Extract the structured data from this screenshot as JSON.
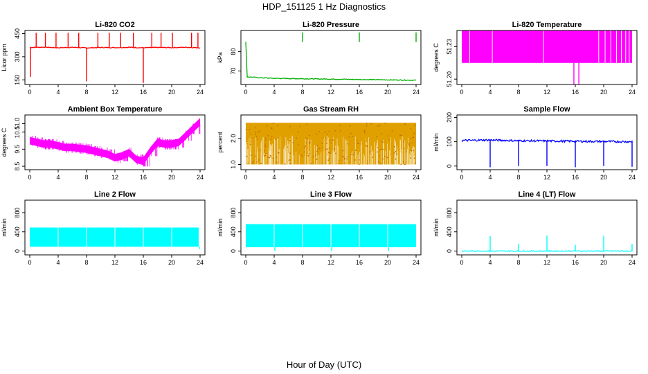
{
  "figure": {
    "title": "HDP_151125  1 Hz Diagnostics",
    "xlabel": "Hour of Day (UTC)"
  },
  "chart_data": [
    {
      "type": "line",
      "title": "Li-820 CO2",
      "ylabel": "Licor ppm",
      "color": "#ff0000",
      "xlim": [
        0,
        24
      ],
      "ylim": [
        120,
        470
      ],
      "xticks": [
        0,
        4,
        8,
        12,
        16,
        20,
        24
      ],
      "yticks": [
        150,
        300,
        450
      ],
      "ytick_labels": [
        "150",
        "300",
        "450"
      ],
      "series": [
        {
          "kind": "baseline",
          "segments": [
            [
              0.0,
              360
            ],
            [
              2,
              362
            ],
            [
              4,
              358
            ],
            [
              6,
              361
            ],
            [
              8,
              357
            ],
            [
              10,
              360
            ],
            [
              12,
              359
            ],
            [
              14,
              361
            ],
            [
              16,
              358
            ],
            [
              18,
              360
            ],
            [
              20,
              359
            ],
            [
              22,
              361
            ],
            [
              24,
              358
            ]
          ]
        },
        {
          "kind": "spikes_up",
          "x": [
            0.9,
            2.2,
            3.7,
            5.4,
            6.9,
            9.6,
            11.2,
            12.8,
            14.6,
            17.2,
            18.5,
            20.1,
            22.8,
            23.7
          ],
          "peak": 455
        },
        {
          "kind": "spikes_down",
          "x": [
            0.1,
            8.0,
            16.0
          ],
          "low": [
            170,
            140,
            130
          ]
        }
      ]
    },
    {
      "type": "line",
      "title": "Li-820 Pressure",
      "ylabel": "kPa",
      "color": "#00b000",
      "xlim": [
        0,
        24
      ],
      "ylim": [
        63,
        91
      ],
      "xticks": [
        0,
        4,
        8,
        12,
        16,
        20,
        24
      ],
      "yticks": [
        70,
        80
      ],
      "ytick_labels": [
        "70",
        "80"
      ],
      "series": [
        {
          "kind": "baseline",
          "segments": [
            [
              0.0,
              85
            ],
            [
              0.2,
              67
            ],
            [
              2,
              66.5
            ],
            [
              4,
              66.2
            ],
            [
              8,
              66.0
            ],
            [
              12,
              65.8
            ],
            [
              16,
              65.6
            ],
            [
              20,
              65.4
            ],
            [
              24,
              65.2
            ]
          ]
        },
        {
          "kind": "spikes_up",
          "x": [
            8.0,
            16.0,
            24.0
          ],
          "peak": 90
        }
      ]
    },
    {
      "type": "bar",
      "title": "Li-820 Temperature",
      "ylabel": "degrees C",
      "color": "#ff00ff",
      "xlim": [
        0,
        24
      ],
      "ylim": [
        51.195,
        51.245
      ],
      "xticks": [
        0,
        4,
        8,
        12,
        16,
        20,
        24
      ],
      "yticks": [
        51.2,
        51.23
      ],
      "ytick_labels": [
        "51.20",
        "51.23"
      ],
      "series": [
        {
          "kind": "band",
          "x": [
            0.0,
            24.0
          ],
          "y": [
            51.215,
            51.245
          ],
          "gaps": [
            1.1,
            4.3,
            11.5,
            19.3,
            20.2,
            21.0,
            21.8,
            22.5,
            23.1,
            23.6
          ]
        },
        {
          "kind": "spikes_down",
          "x": [
            15.8,
            16.5
          ],
          "low": [
            51.195,
            51.195
          ]
        }
      ]
    },
    {
      "type": "line",
      "title": "Ambient Box Temperature",
      "ylabel": "degrees C",
      "color": "#ff00ff",
      "xlim": [
        0,
        24
      ],
      "ylim": [
        8.3,
        11.5
      ],
      "xticks": [
        0,
        4,
        8,
        12,
        16,
        20,
        24
      ],
      "yticks": [
        8.5,
        9.5,
        10.5,
        11.0
      ],
      "ytick_labels": [
        "8.5",
        "9.5",
        "10.5",
        "11.0"
      ],
      "series": [
        {
          "kind": "thick",
          "points": [
            [
              0,
              10.0
            ],
            [
              1,
              9.9
            ],
            [
              2,
              9.8
            ],
            [
              3,
              9.8
            ],
            [
              4,
              9.7
            ],
            [
              5,
              9.6
            ],
            [
              6,
              9.6
            ],
            [
              7,
              9.55
            ],
            [
              8,
              9.5
            ],
            [
              9,
              9.4
            ],
            [
              10,
              9.3
            ],
            [
              11,
              9.2
            ],
            [
              12,
              9.0
            ],
            [
              13,
              9.1
            ],
            [
              14,
              9.3
            ],
            [
              15,
              8.9
            ],
            [
              16,
              8.8
            ],
            [
              17,
              9.4
            ],
            [
              18,
              9.9
            ],
            [
              19,
              9.8
            ],
            [
              20,
              9.8
            ],
            [
              21,
              9.9
            ],
            [
              22,
              10.3
            ],
            [
              23,
              10.7
            ],
            [
              24,
              11.1
            ]
          ],
          "spread": 0.22
        }
      ]
    },
    {
      "type": "scatter",
      "title": "Gas Stream RH",
      "ylabel": "percent",
      "color": "#e0a000",
      "xlim": [
        0,
        24
      ],
      "ylim": [
        0.8,
        2.9
      ],
      "xticks": [
        0,
        4,
        8,
        12,
        16,
        20,
        24
      ],
      "yticks": [
        1.0,
        2.0
      ],
      "ytick_labels": [
        "1.0",
        "2.0"
      ],
      "series": [
        {
          "kind": "band",
          "x": [
            0.0,
            24.0
          ],
          "y": [
            1.0,
            2.6
          ]
        }
      ]
    },
    {
      "type": "line",
      "title": "Sample Flow",
      "ylabel": "ml/min",
      "color": "#0000ff",
      "xlim": [
        0,
        24
      ],
      "ylim": [
        -15,
        210
      ],
      "xticks": [
        0,
        4,
        8,
        12,
        16,
        20,
        24
      ],
      "yticks": [
        0,
        100,
        200
      ],
      "ytick_labels": [
        "0",
        "100",
        "200"
      ],
      "series": [
        {
          "kind": "baseline",
          "segments": [
            [
              0,
              105
            ],
            [
              4,
              107
            ],
            [
              8,
              104
            ],
            [
              12,
              103
            ],
            [
              16,
              102
            ],
            [
              20,
              101
            ],
            [
              24,
              100
            ]
          ],
          "spread": 8
        },
        {
          "kind": "spikes_down",
          "x": [
            4.0,
            8.0,
            12.0,
            16.0,
            20.0,
            24.0
          ],
          "low": [
            -5,
            0,
            0,
            -5,
            0,
            -3
          ]
        }
      ]
    },
    {
      "type": "bar",
      "title": "Line 2 Flow",
      "ylabel": "ml/min",
      "color": "#00ffff",
      "xlim": [
        0,
        24
      ],
      "ylim": [
        -80,
        1060
      ],
      "xticks": [
        0,
        4,
        8,
        12,
        16,
        20,
        24
      ],
      "yticks": [
        0,
        400,
        800
      ],
      "ytick_labels": [
        "0",
        "400",
        "800"
      ],
      "series": [
        {
          "kind": "band",
          "x": [
            0.0,
            23.8
          ],
          "y": [
            90,
            490
          ],
          "gaps": [
            4.0,
            8.0,
            12.0,
            16.0,
            20.0
          ]
        },
        {
          "kind": "spikes_down",
          "x": [
            23.9
          ],
          "low": [
            40
          ]
        }
      ]
    },
    {
      "type": "bar",
      "title": "Line 3 Flow",
      "ylabel": "ml/min",
      "color": "#00ffff",
      "xlim": [
        0,
        24
      ],
      "ylim": [
        -80,
        1060
      ],
      "xticks": [
        0,
        4,
        8,
        12,
        16,
        20,
        24
      ],
      "yticks": [
        0,
        400,
        800
      ],
      "ytick_labels": [
        "0",
        "400",
        "800"
      ],
      "series": [
        {
          "kind": "band",
          "x": [
            0.0,
            24.0
          ],
          "y": [
            80,
            560
          ],
          "gaps": [
            4.0,
            8.0,
            12.0,
            16.0,
            20.0
          ]
        },
        {
          "kind": "spikes_down",
          "x": [
            4.1,
            12.1,
            20.1
          ],
          "low": [
            0,
            0,
            0
          ]
        }
      ]
    },
    {
      "type": "line",
      "title": "Line 4 (LT) Flow",
      "ylabel": "ml/min",
      "color": "#00ffff",
      "xlim": [
        0,
        24
      ],
      "ylim": [
        -80,
        1060
      ],
      "xticks": [
        0,
        4,
        8,
        12,
        16,
        20,
        24
      ],
      "yticks": [
        0,
        400,
        800
      ],
      "ytick_labels": [
        "0",
        "400",
        "800"
      ],
      "series": [
        {
          "kind": "baseline",
          "segments": [
            [
              0,
              0
            ],
            [
              24,
              0
            ]
          ]
        },
        {
          "kind": "spikes_up",
          "x": [
            4.0,
            8.0,
            12.0,
            16.0,
            20.0,
            24.0
          ],
          "peaks": [
            310,
            150,
            320,
            130,
            320,
            150
          ]
        }
      ]
    }
  ]
}
